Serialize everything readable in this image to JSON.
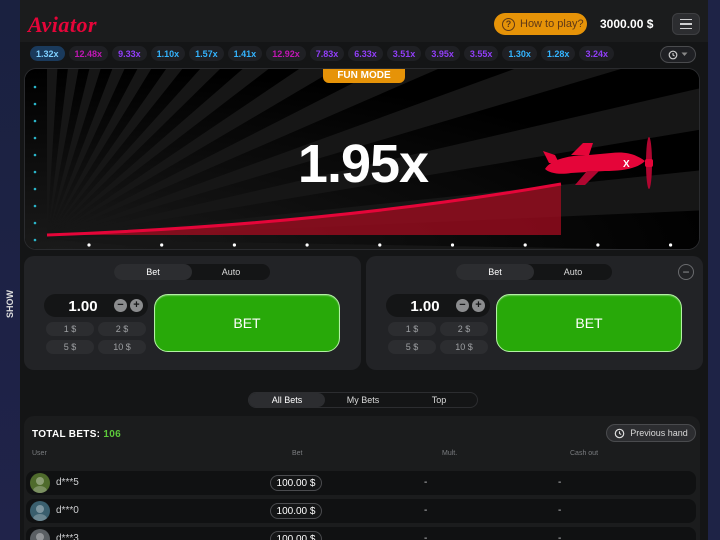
{
  "header": {
    "logo": "Aviator",
    "how_to_play": "How to play?",
    "balance": "3000.00 $"
  },
  "multipliers": [
    {
      "v": "1.32x",
      "c": "first"
    },
    {
      "v": "12.48x",
      "c": "pink"
    },
    {
      "v": "9.33x",
      "c": "purple"
    },
    {
      "v": "1.10x",
      "c": "blue"
    },
    {
      "v": "1.57x",
      "c": "blue"
    },
    {
      "v": "1.41x",
      "c": "blue"
    },
    {
      "v": "12.92x",
      "c": "pink"
    },
    {
      "v": "7.83x",
      "c": "purple"
    },
    {
      "v": "6.33x",
      "c": "purple"
    },
    {
      "v": "3.51x",
      "c": "purple"
    },
    {
      "v": "3.95x",
      "c": "purple"
    },
    {
      "v": "3.55x",
      "c": "purple"
    },
    {
      "v": "1.30x",
      "c": "blue"
    },
    {
      "v": "1.28x",
      "c": "blue"
    },
    {
      "v": "3.24x",
      "c": "purple"
    }
  ],
  "game": {
    "mode_badge": "FUN MODE",
    "current_multiplier": "1.95x"
  },
  "side_tab": "SHOW",
  "panels": [
    {
      "tabs": [
        "Bet",
        "Auto"
      ],
      "stake": "1.00",
      "quick": [
        "1 $",
        "2 $",
        "5 $",
        "10 $"
      ],
      "bet_label": "BET"
    },
    {
      "tabs": [
        "Bet",
        "Auto"
      ],
      "stake": "1.00",
      "quick": [
        "1 $",
        "2 $",
        "5 $",
        "10 $"
      ],
      "bet_label": "BET"
    }
  ],
  "bets_tabs": [
    "All Bets",
    "My Bets",
    "Top"
  ],
  "bets": {
    "total_label": "TOTAL BETS:",
    "total_count": "106",
    "previous_hand": "Previous hand",
    "columns": {
      "user": "User",
      "bet": "Bet",
      "mult": "Mult.",
      "cashout": "Cash out"
    },
    "rows": [
      {
        "user": "d***5",
        "bet": "100.00 $",
        "mult": "-",
        "cashout": "-",
        "avatar": "#4f6b2c"
      },
      {
        "user": "d***0",
        "bet": "100.00 $",
        "mult": "-",
        "cashout": "-",
        "avatar": "#3a5f6e"
      },
      {
        "user": "d***3",
        "bet": "100.00 $",
        "mult": "-",
        "cashout": "-",
        "avatar": "#5a5f63"
      }
    ]
  },
  "colors": {
    "accent_red": "#e50539",
    "bet_green": "#28a909",
    "orange": "#e69308"
  }
}
